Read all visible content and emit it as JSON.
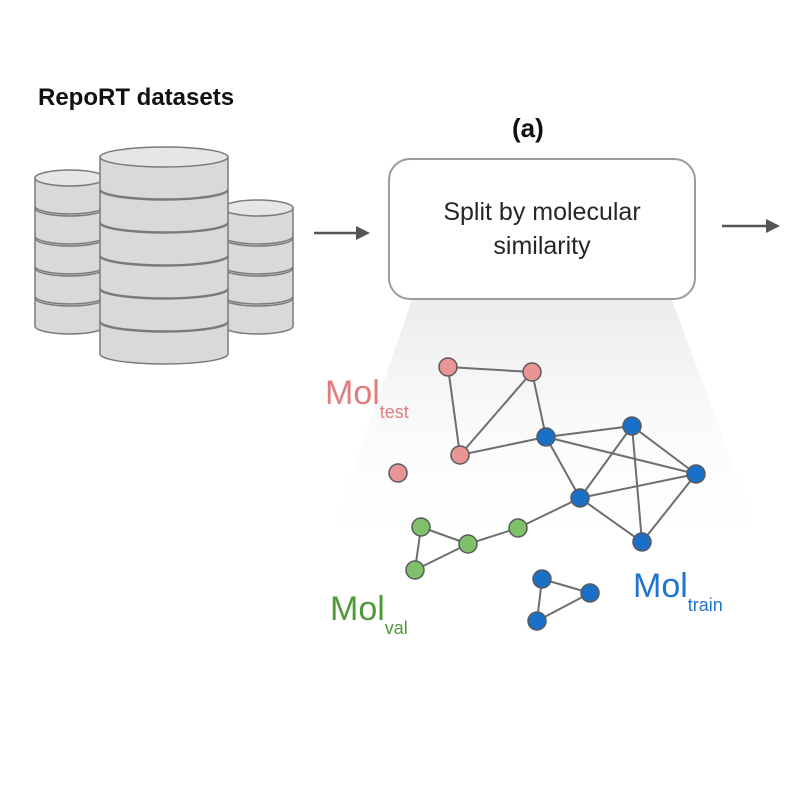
{
  "header": {
    "datasets_title": "RepoRT datasets",
    "panel_label": "(a)"
  },
  "step": {
    "label": "Split by molecular similarity"
  },
  "labels": {
    "test": {
      "main": "Mol",
      "sub": "test"
    },
    "val": {
      "main": "Mol",
      "sub": "val"
    },
    "train": {
      "main": "Mol",
      "sub": "train"
    }
  },
  "colors": {
    "test": "#e99595",
    "val": "#7fc06a",
    "train": "#1a6fc7",
    "test_text": "#e07e7e",
    "val_text": "#4f9a37",
    "train_text": "#1f74cc",
    "edge": "#6e6e6e",
    "arrow": "#555555",
    "cylinder_fill": "#d9d9d9",
    "cylinder_stroke": "#7a7a7a"
  },
  "icons": [
    "database-icon",
    "arrow-right-icon",
    "molecule-graph-icon"
  ]
}
